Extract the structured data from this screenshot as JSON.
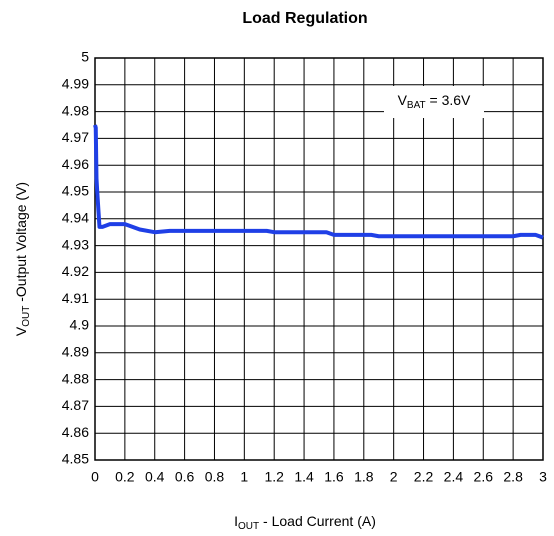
{
  "chart_data": {
    "type": "line",
    "title": "Load Regulation",
    "xlabel": {
      "main": "I",
      "sub": "OUT",
      "rest": " - Load Current (A)"
    },
    "ylabel": {
      "main": "V",
      "sub": "OUT",
      "rest": " -Output Voltage (V)"
    },
    "annotation": {
      "main": "V",
      "sub": "BAT",
      "rest": " = 3.6V"
    },
    "x": [
      0,
      0.005,
      0.01,
      0.015,
      0.03,
      0.05,
      0.1,
      0.2,
      0.3,
      0.4,
      0.5,
      1.0,
      1.15,
      1.2,
      1.55,
      1.6,
      1.85,
      1.9,
      2.8,
      2.85,
      2.95,
      3.0
    ],
    "series": [
      {
        "name": "Load Regulation",
        "color": "#1f3fe6",
        "values": [
          4.975,
          4.974,
          4.955,
          4.95,
          4.937,
          4.937,
          4.938,
          4.938,
          4.936,
          4.935,
          4.9355,
          4.9355,
          4.9355,
          4.935,
          4.935,
          4.934,
          4.934,
          4.9335,
          4.9335,
          4.934,
          4.934,
          4.933
        ]
      }
    ],
    "xlim": [
      0,
      3
    ],
    "xticks": [
      0,
      0.2,
      0.4,
      0.6,
      0.8,
      1,
      1.2,
      1.4,
      1.6,
      1.8,
      2,
      2.2,
      2.4,
      2.6,
      2.8,
      3
    ],
    "ylim": [
      4.85,
      5
    ],
    "yticks": [
      4.85,
      4.86,
      4.87,
      4.88,
      4.89,
      4.9,
      4.91,
      4.92,
      4.93,
      4.94,
      4.95,
      4.96,
      4.97,
      4.98,
      4.99,
      5
    ],
    "grid": true
  }
}
